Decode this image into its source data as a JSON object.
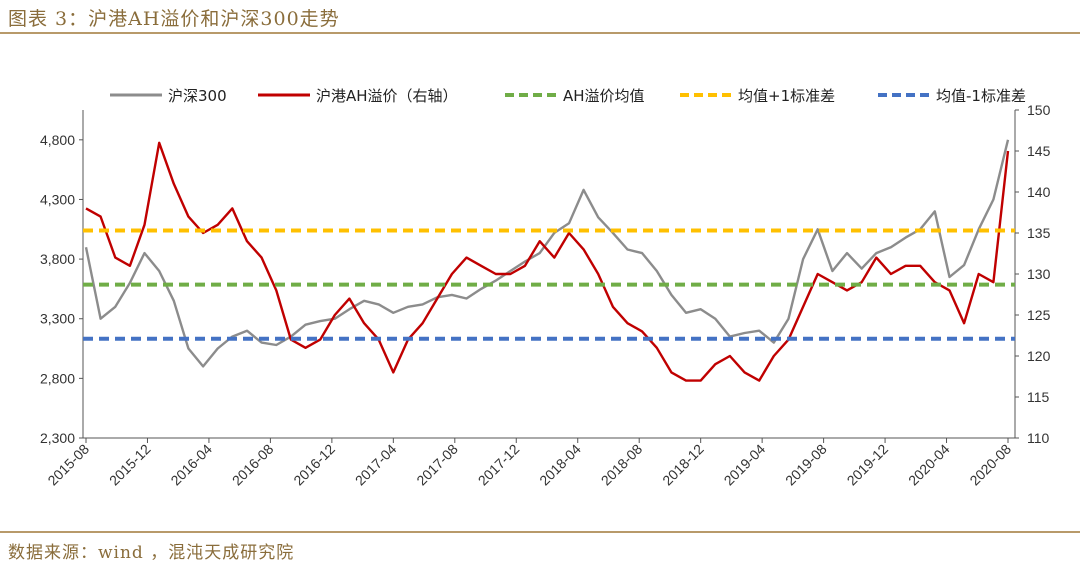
{
  "header": {
    "title": "图表 3：沪港AH溢价和沪深300走势"
  },
  "footer": {
    "source": "数据来源：wind ，混沌天成研究院"
  },
  "colors": {
    "csi300": "#8c8c8c",
    "ah_premium": "#c00000",
    "mean": "#70ad47",
    "plus_sd": "#ffc000",
    "minus_sd": "#4472c4",
    "rule": "#b89a6a"
  },
  "chart_data": {
    "type": "line",
    "title": "",
    "x_ticks": [
      "2015-08",
      "2015-12",
      "2016-04",
      "2016-08",
      "2016-12",
      "2017-04",
      "2017-08",
      "2017-12",
      "2018-04",
      "2018-08",
      "2018-12",
      "2019-04",
      "2019-08",
      "2019-12",
      "2020-04",
      "2020-08"
    ],
    "y_left": {
      "range": [
        2300,
        4800
      ],
      "ticks": [
        "2,300",
        "2,800",
        "3,300",
        "3,800",
        "4,300",
        "4,800"
      ],
      "tick_values": [
        2300,
        2800,
        3300,
        3800,
        4300,
        4800
      ],
      "max_display": 5050
    },
    "y_right": {
      "range": [
        110,
        150
      ],
      "ticks": [
        "110",
        "115",
        "120",
        "125",
        "130",
        "135",
        "140",
        "145",
        "150"
      ],
      "tick_values": [
        110,
        115,
        120,
        125,
        130,
        135,
        140,
        145,
        150
      ]
    },
    "legend_position": "top",
    "series": [
      {
        "name": "沪深300",
        "axis": "left",
        "style": "solid",
        "x": [
          0,
          1,
          2,
          3,
          4,
          5,
          6,
          7,
          8,
          9,
          10,
          11,
          12,
          13,
          14,
          15,
          16,
          17,
          18,
          19,
          20,
          21,
          22,
          23,
          24,
          25,
          26,
          27,
          28,
          29,
          30,
          31,
          32,
          33,
          34,
          35,
          36,
          37,
          38,
          39,
          40,
          41,
          42,
          43,
          44,
          45,
          46,
          47,
          48,
          49,
          50,
          51,
          52,
          53,
          54,
          55,
          56,
          57,
          58,
          59,
          60,
          61,
          62,
          63
        ],
        "values": [
          3900,
          3300,
          3400,
          3600,
          3850,
          3700,
          3450,
          3050,
          2900,
          3050,
          3150,
          3200,
          3100,
          3080,
          3150,
          3250,
          3280,
          3300,
          3380,
          3450,
          3420,
          3350,
          3400,
          3420,
          3480,
          3500,
          3470,
          3550,
          3620,
          3700,
          3780,
          3850,
          4020,
          4100,
          4380,
          4150,
          4020,
          3880,
          3850,
          3700,
          3500,
          3350,
          3380,
          3300,
          3150,
          3180,
          3200,
          3100,
          3300,
          3800,
          4050,
          3700,
          3850,
          3720,
          3850,
          3900,
          3980,
          4050,
          4200,
          3650,
          3750,
          4050,
          4300,
          4800
        ]
      },
      {
        "name": "沪港AH溢价（右轴）",
        "axis": "right",
        "style": "solid",
        "x": [
          0,
          1,
          2,
          3,
          4,
          5,
          6,
          7,
          8,
          9,
          10,
          11,
          12,
          13,
          14,
          15,
          16,
          17,
          18,
          19,
          20,
          21,
          22,
          23,
          24,
          25,
          26,
          27,
          28,
          29,
          30,
          31,
          32,
          33,
          34,
          35,
          36,
          37,
          38,
          39,
          40,
          41,
          42,
          43,
          44,
          45,
          46,
          47,
          48,
          49,
          50,
          51,
          52,
          53,
          54,
          55,
          56,
          57,
          58,
          59,
          60,
          61,
          62,
          63
        ],
        "values": [
          138,
          137,
          132,
          131,
          136,
          146,
          141,
          137,
          135,
          136,
          138,
          134,
          132,
          128,
          122,
          121,
          122,
          125,
          127,
          124,
          122,
          118,
          122,
          124,
          127,
          130,
          132,
          131,
          130,
          130,
          131,
          134,
          132,
          135,
          133,
          130,
          126,
          124,
          123,
          121,
          118,
          117,
          117,
          119,
          120,
          118,
          117,
          120,
          122,
          126,
          130,
          129,
          128,
          129,
          132,
          130,
          131,
          131,
          129,
          128,
          124,
          130,
          129,
          145
        ]
      },
      {
        "name": "AH溢价均值",
        "axis": "right",
        "style": "dashed",
        "values": [
          128.7
        ]
      },
      {
        "name": "均值+1标准差",
        "axis": "right",
        "style": "dashed",
        "values": [
          135.3
        ]
      },
      {
        "name": "均值-1标准差",
        "axis": "right",
        "style": "dashed",
        "values": [
          122.1
        ]
      }
    ]
  }
}
